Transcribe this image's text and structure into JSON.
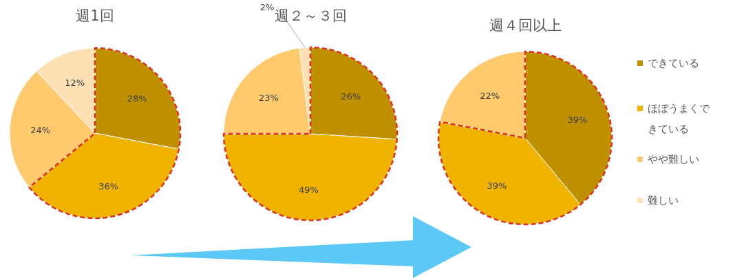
{
  "chart_data": [
    {
      "type": "pie",
      "title": "週1回",
      "categories": [
        null,
        null,
        null,
        null
      ],
      "values": [
        28,
        36,
        24,
        12
      ],
      "colors": [
        "#bf9000",
        "#efb300",
        "#ffca6e",
        "#fde0b4"
      ],
      "value_labels": [
        "28%",
        "36%",
        "24%",
        "12%"
      ],
      "legend": false
    },
    {
      "type": "pie",
      "title": "週２～３回",
      "categories": [
        null,
        null,
        null,
        null
      ],
      "values": [
        26,
        49,
        23,
        2
      ],
      "colors": [
        "#bf9000",
        "#efb300",
        "#ffca6e",
        "#fde0b4"
      ],
      "value_labels": [
        "26%",
        "49%",
        "23%",
        "2%"
      ],
      "legend": false
    },
    {
      "type": "pie",
      "title": "週４回以上",
      "categories": [
        "できている",
        "ほぼうまくできている",
        "やや難しい",
        "難しい"
      ],
      "values": [
        39,
        39,
        22,
        0
      ],
      "colors": [
        "#bf9000",
        "#efb300",
        "#ffca6e",
        "#fde0b4"
      ],
      "value_labels": [
        "39%",
        "39%",
        "22%",
        null
      ],
      "legend": "right"
    }
  ]
}
